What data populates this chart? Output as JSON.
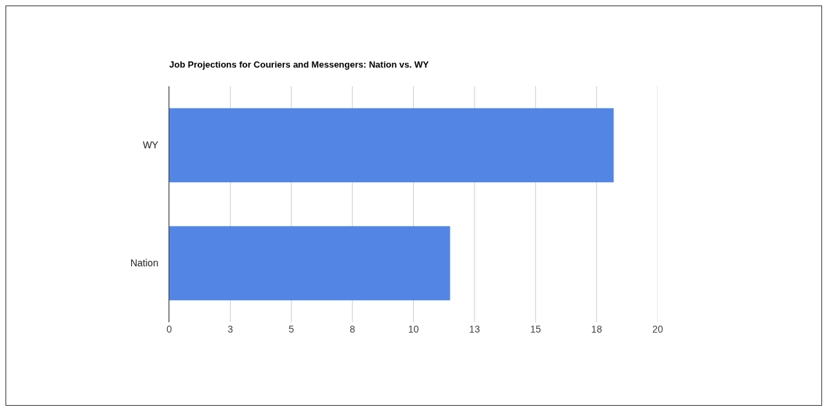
{
  "chart_data": {
    "type": "bar",
    "orientation": "horizontal",
    "title": "Job Projections for Couriers and Messengers: Nation vs. WY",
    "categories": [
      "WY",
      "Nation"
    ],
    "values": [
      18.2,
      11.5
    ],
    "color": "#5386e4",
    "xlim": [
      0,
      20
    ],
    "xticks": [
      0,
      {
        "value": 2.5,
        "label": "3"
      },
      5,
      {
        "value": 7.5,
        "label": "8"
      },
      10,
      {
        "value": 12.5,
        "label": "13"
      },
      15,
      {
        "value": 17.5,
        "label": "18"
      },
      20
    ],
    "grid": "x"
  }
}
